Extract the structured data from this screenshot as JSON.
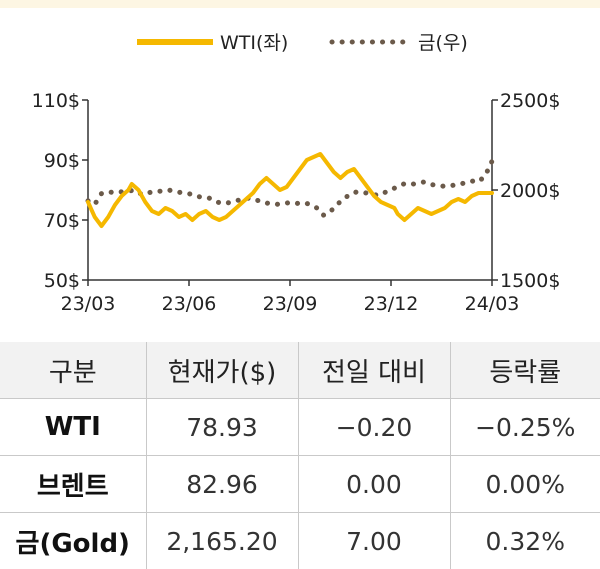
{
  "chart_data": {
    "type": "line",
    "x_ticks": [
      "23/03",
      "23/06",
      "23/09",
      "23/12",
      "24/03"
    ],
    "y_left": {
      "ticks": [
        "110$",
        "90$",
        "70$",
        "50$"
      ],
      "range": [
        50,
        110
      ],
      "tick_values": [
        110,
        90,
        70,
        50
      ]
    },
    "y_right": {
      "ticks": [
        "2500$",
        "2000$",
        "1500$"
      ],
      "range": [
        1500,
        2500
      ],
      "tick_values": [
        2500,
        2000,
        1500
      ]
    },
    "grid": false,
    "legend_position": "top-center",
    "series": [
      {
        "name": "WTI(좌)",
        "axis": "left",
        "color": "#f5b800",
        "style": "solid",
        "points": [
          [
            0,
            76
          ],
          [
            2,
            71
          ],
          [
            4,
            68
          ],
          [
            6,
            71
          ],
          [
            8,
            75
          ],
          [
            10,
            78
          ],
          [
            12,
            80
          ],
          [
            13,
            82
          ],
          [
            15,
            80
          ],
          [
            17,
            76
          ],
          [
            19,
            73
          ],
          [
            21,
            72
          ],
          [
            23,
            74
          ],
          [
            25,
            73
          ],
          [
            27,
            71
          ],
          [
            29,
            72
          ],
          [
            31,
            70
          ],
          [
            33,
            72
          ],
          [
            35,
            73
          ],
          [
            37,
            71
          ],
          [
            39,
            70
          ],
          [
            41,
            71
          ],
          [
            43,
            73
          ],
          [
            45,
            75
          ],
          [
            47,
            77
          ],
          [
            49,
            79
          ],
          [
            51,
            82
          ],
          [
            53,
            84
          ],
          [
            55,
            82
          ],
          [
            57,
            80
          ],
          [
            59,
            81
          ],
          [
            61,
            84
          ],
          [
            63,
            87
          ],
          [
            65,
            90
          ],
          [
            67,
            91
          ],
          [
            69,
            92
          ],
          [
            71,
            89
          ],
          [
            73,
            86
          ],
          [
            75,
            84
          ],
          [
            77,
            86
          ],
          [
            79,
            87
          ],
          [
            81,
            84
          ],
          [
            83,
            81
          ],
          [
            85,
            78
          ],
          [
            87,
            76
          ],
          [
            89,
            75
          ],
          [
            91,
            74
          ],
          [
            92,
            72
          ],
          [
            94,
            70
          ],
          [
            96,
            72
          ],
          [
            98,
            74
          ],
          [
            100,
            73
          ],
          [
            102,
            72
          ],
          [
            104,
            73
          ],
          [
            106,
            74
          ],
          [
            108,
            76
          ],
          [
            110,
            77
          ],
          [
            112,
            76
          ],
          [
            114,
            78
          ],
          [
            116,
            79
          ],
          [
            118,
            79
          ],
          [
            120,
            79
          ]
        ]
      },
      {
        "name": "금(우)",
        "axis": "right",
        "color": "#6b5a4a",
        "style": "dotted",
        "points": [
          [
            0,
            1940
          ],
          [
            2,
            1920
          ],
          [
            4,
            1980
          ],
          [
            6,
            1990
          ],
          [
            8,
            1985
          ],
          [
            10,
            1990
          ],
          [
            12,
            1995
          ],
          [
            14,
            1998
          ],
          [
            16,
            1975
          ],
          [
            18,
            1985
          ],
          [
            20,
            1992
          ],
          [
            22,
            1994
          ],
          [
            24,
            2000
          ],
          [
            26,
            1990
          ],
          [
            28,
            1985
          ],
          [
            30,
            1980
          ],
          [
            32,
            1965
          ],
          [
            34,
            1960
          ],
          [
            36,
            1955
          ],
          [
            38,
            1935
          ],
          [
            40,
            1925
          ],
          [
            42,
            1930
          ],
          [
            44,
            1940
          ],
          [
            46,
            1950
          ],
          [
            48,
            1955
          ],
          [
            50,
            1945
          ],
          [
            52,
            1930
          ],
          [
            54,
            1925
          ],
          [
            56,
            1920
          ],
          [
            58,
            1925
          ],
          [
            60,
            1930
          ],
          [
            62,
            1925
          ],
          [
            64,
            1930
          ],
          [
            66,
            1920
          ],
          [
            68,
            1900
          ],
          [
            70,
            1860
          ],
          [
            72,
            1880
          ],
          [
            74,
            1920
          ],
          [
            76,
            1950
          ],
          [
            78,
            1980
          ],
          [
            80,
            1990
          ],
          [
            82,
            1985
          ],
          [
            84,
            1980
          ],
          [
            86,
            1970
          ],
          [
            88,
            1985
          ],
          [
            90,
            2000
          ],
          [
            92,
            2020
          ],
          [
            94,
            2035
          ],
          [
            96,
            2030
          ],
          [
            98,
            2040
          ],
          [
            100,
            2045
          ],
          [
            102,
            2030
          ],
          [
            104,
            2025
          ],
          [
            106,
            2020
          ],
          [
            108,
            2025
          ],
          [
            110,
            2030
          ],
          [
            112,
            2040
          ],
          [
            114,
            2050
          ],
          [
            116,
            2045
          ],
          [
            118,
            2080
          ],
          [
            120,
            2160
          ]
        ]
      }
    ]
  },
  "table": {
    "headers": [
      "구분",
      "현재가($)",
      "전일 대비",
      "등락률"
    ],
    "rows": [
      [
        "WTI",
        "78.93",
        "−0.20",
        "−0.25%"
      ],
      [
        "브렌트",
        "82.96",
        "0.00",
        "0.00%"
      ],
      [
        "금(Gold)",
        "2,165.20",
        "7.00",
        "0.32%"
      ]
    ]
  }
}
